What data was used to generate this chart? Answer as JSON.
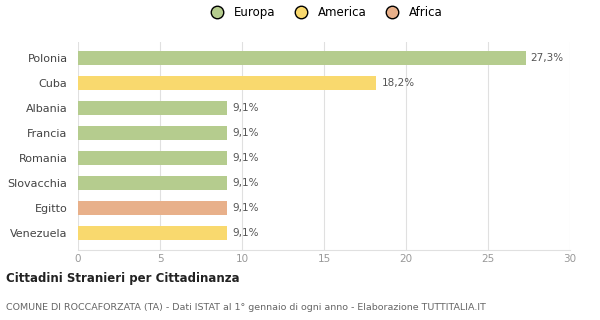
{
  "categories": [
    "Venezuela",
    "Egitto",
    "Slovacchia",
    "Romania",
    "Francia",
    "Albania",
    "Cuba",
    "Polonia"
  ],
  "values": [
    9.1,
    9.1,
    9.1,
    9.1,
    9.1,
    9.1,
    18.2,
    27.3
  ],
  "labels": [
    "9,1%",
    "9,1%",
    "9,1%",
    "9,1%",
    "9,1%",
    "9,1%",
    "18,2%",
    "27,3%"
  ],
  "colors": [
    "#f9d96e",
    "#e8b08a",
    "#b5cc8e",
    "#b5cc8e",
    "#b5cc8e",
    "#b5cc8e",
    "#f9d96e",
    "#b5cc8e"
  ],
  "legend": [
    {
      "label": "Europa",
      "color": "#b5cc8e"
    },
    {
      "label": "America",
      "color": "#f9d96e"
    },
    {
      "label": "Africa",
      "color": "#e8b08a"
    }
  ],
  "xlim": [
    0,
    30
  ],
  "xticks": [
    0,
    5,
    10,
    15,
    20,
    25,
    30
  ],
  "title_bold": "Cittadini Stranieri per Cittadinanza",
  "subtitle": "COMUNE DI ROCCAFORZATA (TA) - Dati ISTAT al 1° gennaio di ogni anno - Elaborazione TUTTITALIA.IT",
  "background_color": "#ffffff",
  "bar_height": 0.55,
  "grid_color": "#e0e0e0"
}
